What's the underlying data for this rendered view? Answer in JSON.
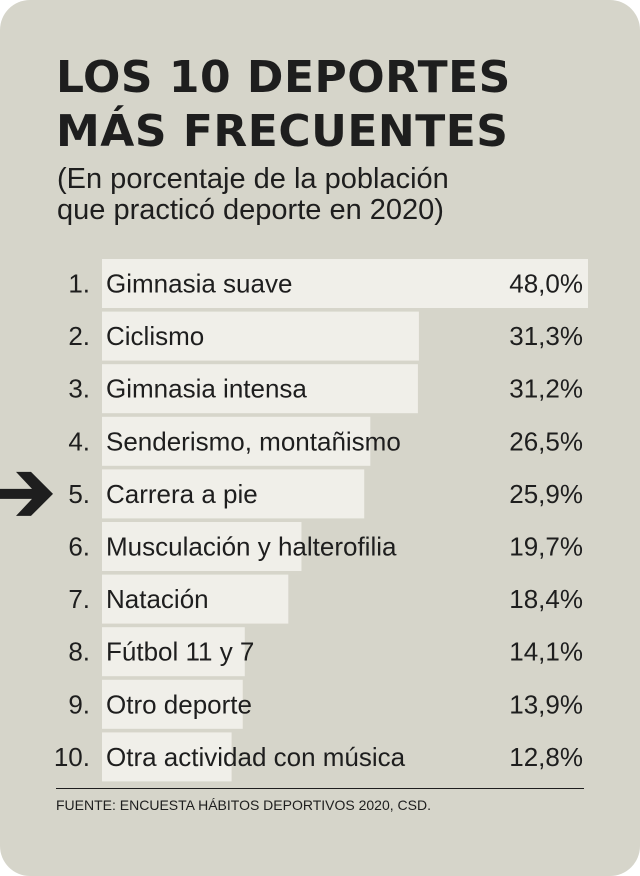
{
  "title": {
    "line1": "LOS 10 DEPORTES",
    "line2": "MÁS FRECUENTES"
  },
  "subtitle": {
    "line1": "(En porcentaje de la población",
    "line2": "que practicó deporte en 2020)"
  },
  "chart_data": {
    "type": "bar",
    "orientation": "horizontal",
    "ranks": [
      "1.",
      "2.",
      "3.",
      "4.",
      "5.",
      "6.",
      "7.",
      "8.",
      "9.",
      "10."
    ],
    "categories": [
      "Gimnasia suave",
      "Ciclismo",
      "Gimnasia intensa",
      "Senderismo, montañismo",
      "Carrera a pie",
      "Musculación y halterofilia",
      "Natación",
      "Fútbol 11 y 7",
      "Otro deporte",
      "Otra actividad con música"
    ],
    "values": [
      48.0,
      31.3,
      31.2,
      26.5,
      25.9,
      19.7,
      18.4,
      14.1,
      13.9,
      12.8
    ],
    "value_labels": [
      "48,0%",
      "31,3%",
      "31,2%",
      "26,5%",
      "25,9%",
      "19,7%",
      "18,4%",
      "14,1%",
      "13,9%",
      "12,8%"
    ],
    "unit": "%",
    "highlighted_index": 4,
    "highlight_marker": "arrow-right",
    "grid": false,
    "legend": "none"
  },
  "source": "FUENTE: ENCUESTA HÁBITOS DEPORTIVOS 2020, CSD.",
  "colors": {
    "background": "#d6d5ca",
    "bar": "#f0efe9",
    "text": "#1e1e1e"
  }
}
